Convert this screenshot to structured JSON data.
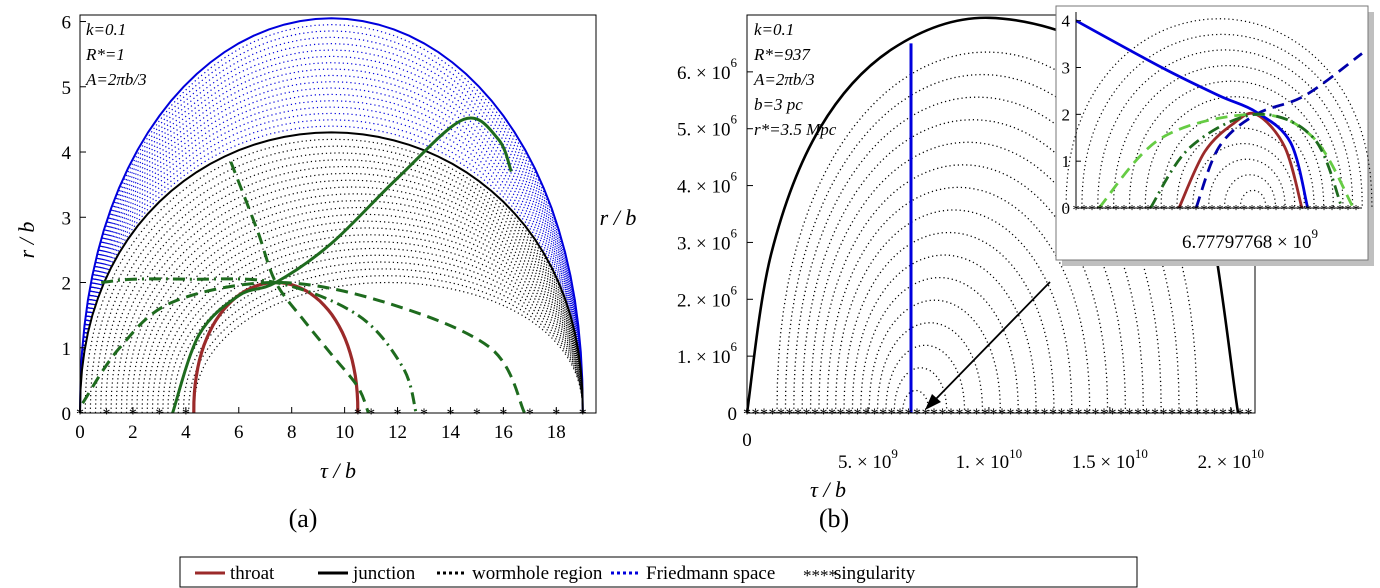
{
  "chart_data": [
    {
      "panel_label": "(a)",
      "type": "line",
      "xlabel": "τ / b",
      "ylabel": "r / b",
      "xlim": [
        0,
        19.5
      ],
      "ylim": [
        0,
        6.1
      ],
      "x_ticks": [
        "0",
        "2",
        "4",
        "6",
        "8",
        "10",
        "12",
        "14",
        "16",
        "18"
      ],
      "y_ticks": [
        "0",
        "1",
        "2",
        "3",
        "4",
        "5",
        "6"
      ],
      "annotations": [
        "k=0.1",
        "R*=1",
        "A=2πb/3"
      ],
      "series": [
        {
          "name": "throat",
          "color": "#9b2a2a",
          "style": "solid",
          "x": [
            4.3,
            5.0,
            6.0,
            7.4,
            8.8,
            9.8,
            10.5
          ],
          "y": [
            0,
            1.2,
            1.8,
            2.0,
            1.8,
            1.2,
            0
          ]
        },
        {
          "name": "junction",
          "color": "#000000",
          "style": "solid",
          "x": [
            0,
            3.0,
            6.0,
            9.5,
            13.0,
            16.0,
            19.0
          ],
          "y": [
            0,
            3.1,
            4.1,
            4.3,
            4.1,
            3.1,
            0
          ]
        },
        {
          "name": "wormhole region",
          "color": "#000000",
          "style": "dotted",
          "x": [
            4.3,
            19.0
          ],
          "y": [
            0,
            4.3
          ]
        },
        {
          "name": "Friedmann space",
          "color": "#0000dd",
          "style": "dotted",
          "x": [
            0,
            19.0
          ],
          "y": [
            0,
            6.05
          ]
        },
        {
          "name": "singularity",
          "color": "#ff2222",
          "style": "star-markers",
          "x": [
            0,
            1,
            2,
            3,
            4,
            10.5,
            11,
            12,
            13,
            14,
            15,
            16,
            17,
            18,
            19
          ],
          "y": [
            0,
            0,
            0,
            0,
            0,
            0,
            0,
            0,
            0,
            0,
            0,
            0,
            0,
            0,
            0
          ]
        },
        {
          "color": "#1e6b1e",
          "style": "solid",
          "x": [
            3.5,
            4.5,
            6.0,
            7.4,
            9.5,
            12.0,
            14.5,
            15.8,
            16.3
          ],
          "y": [
            0,
            1.2,
            1.8,
            2.0,
            2.6,
            3.6,
            4.5,
            4.2,
            3.7
          ]
        },
        {
          "color": "#1e6b1e",
          "style": "dashed",
          "x": [
            5.7,
            6.7,
            7.4,
            8.5,
            9.5,
            10.5,
            10.9
          ],
          "y": [
            3.85,
            2.8,
            2.0,
            1.4,
            0.9,
            0.4,
            0
          ]
        },
        {
          "color": "#1e6b1e",
          "style": "dashed",
          "x": [
            0.1,
            1.5,
            3.5,
            7.4,
            11.5,
            15.5,
            16.8
          ],
          "y": [
            0.15,
            1.0,
            1.7,
            2.0,
            1.7,
            1.0,
            0
          ]
        },
        {
          "color": "#1e6b1e",
          "style": "dash-dot",
          "x": [
            0.8,
            2.0,
            4.0,
            7.4,
            10.5,
            12.2,
            12.7
          ],
          "y": [
            2.0,
            2.05,
            2.05,
            2.0,
            1.5,
            0.7,
            0
          ]
        }
      ]
    },
    {
      "panel_label": "(b)",
      "type": "line",
      "xlabel": "τ / b",
      "ylabel": "r / b",
      "xlim": [
        0,
        21000000000.0
      ],
      "ylim": [
        0,
        7000000.0
      ],
      "x_ticks": [
        {
          "value": 0,
          "mantissa": "0",
          "exp": ""
        },
        {
          "value": 5000000000.0,
          "mantissa": "5. × 10",
          "exp": "9"
        },
        {
          "value": 10000000000.0,
          "mantissa": "1. × 10",
          "exp": "10"
        },
        {
          "value": 15000000000.0,
          "mantissa": "1.5 × 10",
          "exp": "10"
        },
        {
          "value": 20000000000.0,
          "mantissa": "2. × 10",
          "exp": "10"
        }
      ],
      "y_ticks": [
        {
          "value": 0,
          "mantissa": "0",
          "exp": ""
        },
        {
          "value": 1000000.0,
          "mantissa": "1. × 10",
          "exp": "6"
        },
        {
          "value": 2000000.0,
          "mantissa": "2. × 10",
          "exp": "6"
        },
        {
          "value": 3000000.0,
          "mantissa": "3. × 10",
          "exp": "6"
        },
        {
          "value": 4000000.0,
          "mantissa": "4. × 10",
          "exp": "6"
        },
        {
          "value": 5000000.0,
          "mantissa": "5. × 10",
          "exp": "6"
        },
        {
          "value": 6000000.0,
          "mantissa": "6. × 10",
          "exp": "6"
        }
      ],
      "annotations": [
        "k=0.1",
        "R*=937",
        "A=2πb/3",
        "b=3 pc",
        "r*=3.5 Mpc"
      ],
      "series": [
        {
          "name": "junction",
          "color": "#000000",
          "style": "solid",
          "x": [
            0,
            1000000000.0,
            3000000000.0,
            6000000000.0,
            10000000000.0,
            15000000000.0,
            18500000000.0,
            20300000000.0
          ],
          "y": [
            0,
            2800000.0,
            5000000.0,
            6400000.0,
            6950000.0,
            6300000.0,
            4500000.0,
            0
          ]
        },
        {
          "name": "Friedmann space",
          "color": "#0000dd",
          "style": "solid",
          "x": [
            6780000000.0,
            6780000000.0
          ],
          "y": [
            0,
            6500000.0
          ]
        },
        {
          "name": "singularity",
          "color": "#ff2222",
          "style": "star-markers",
          "x": [
            0,
            20300000000.0
          ],
          "y": [
            0,
            0
          ]
        }
      ],
      "inset": {
        "xlabel_value": {
          "mantissa": "6.77797768 × 10",
          "exp": "9"
        },
        "y_ticks": [
          "0",
          "1",
          "2",
          "3",
          "4"
        ],
        "ylim": [
          0,
          4.1
        ],
        "series": [
          {
            "name": "throat",
            "color": "#9b2a2a",
            "style": "solid",
            "x": [
              0.36,
              0.45,
              0.55,
              0.63,
              0.73,
              0.79
            ],
            "y": [
              0,
              1.2,
              1.8,
              2.0,
              1.3,
              0
            ]
          },
          {
            "color": "#0000dd",
            "style": "solid",
            "x": [
              0.0,
              0.3,
              0.5,
              0.63,
              0.75,
              0.81
            ],
            "y": [
              4.0,
              3.0,
              2.4,
              2.05,
              1.4,
              0
            ]
          },
          {
            "color": "#0000aa",
            "style": "dashed",
            "x": [
              0.42,
              0.5,
              0.63,
              0.8,
              1.0
            ],
            "y": [
              0,
              1.3,
              2.0,
              2.4,
              3.3
            ]
          },
          {
            "color": "#66cc44",
            "style": "dashed",
            "x": [
              0.08,
              0.3,
              0.63,
              0.83,
              0.97
            ],
            "y": [
              0,
              1.5,
              2.0,
              1.5,
              0
            ]
          },
          {
            "color": "#1e6b1e",
            "style": "dash-dot",
            "x": [
              0.26,
              0.4,
              0.63,
              0.83,
              0.93
            ],
            "y": [
              0,
              1.3,
              2.0,
              1.5,
              0
            ]
          }
        ]
      }
    }
  ],
  "legend": [
    {
      "label": "throat",
      "color": "#9b2a2a",
      "style": "solid"
    },
    {
      "label": "junction",
      "color": "#000000",
      "style": "solid"
    },
    {
      "label": "wormhole region",
      "color": "#000000",
      "style": "dotted"
    },
    {
      "label": "Friedmann space",
      "color": "#0000dd",
      "style": "dotted"
    },
    {
      "label": "singularity",
      "color": "#ff2222",
      "style": "stars"
    }
  ]
}
